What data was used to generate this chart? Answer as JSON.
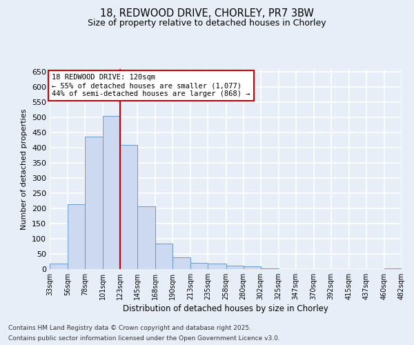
{
  "title1": "18, REDWOOD DRIVE, CHORLEY, PR7 3BW",
  "title2": "Size of property relative to detached houses in Chorley",
  "xlabel": "Distribution of detached houses by size in Chorley",
  "ylabel": "Number of detached properties",
  "bins": [
    33,
    56,
    78,
    101,
    123,
    145,
    168,
    190,
    213,
    235,
    258,
    280,
    302,
    325,
    347,
    370,
    392,
    415,
    437,
    460,
    482
  ],
  "bar_heights": [
    18,
    215,
    437,
    505,
    410,
    207,
    85,
    38,
    20,
    18,
    12,
    8,
    2,
    0,
    0,
    0,
    0,
    0,
    0,
    3
  ],
  "bar_color": "#ccd9f0",
  "bar_edge_color": "#6699cc",
  "vline_x": 123,
  "vline_color": "#cc0000",
  "annotation_line1": "18 REDWOOD DRIVE: 120sqm",
  "annotation_line2": "← 55% of detached houses are smaller (1,077)",
  "annotation_line3": "44% of semi-detached houses are larger (868) →",
  "annotation_box_color": "#ffffff",
  "annotation_box_edge": "#cc0000",
  "ylim": [
    0,
    660
  ],
  "yticks": [
    0,
    50,
    100,
    150,
    200,
    250,
    300,
    350,
    400,
    450,
    500,
    550,
    600,
    650
  ],
  "bg_color": "#e8eef8",
  "grid_color": "#ffffff",
  "footnote1": "Contains HM Land Registry data © Crown copyright and database right 2025.",
  "footnote2": "Contains public sector information licensed under the Open Government Licence v3.0."
}
